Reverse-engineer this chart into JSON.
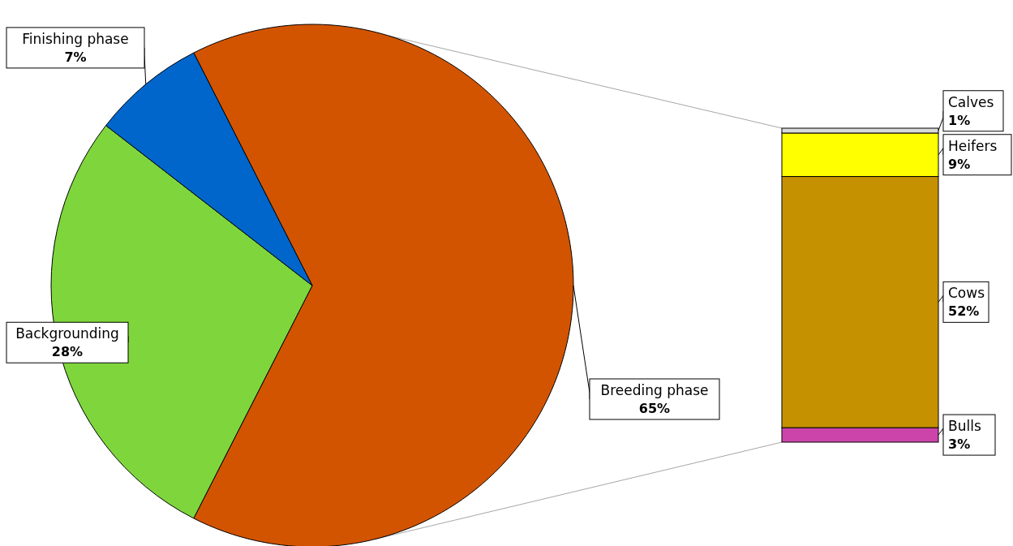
{
  "chart_data": [
    {
      "type": "pie",
      "categories": [
        "Breeding phase",
        "Backgrounding",
        "Finishing phase"
      ],
      "values": [
        65,
        28,
        7
      ],
      "colors": [
        "#d35400",
        "#7ed63c",
        "#0066cc"
      ],
      "value_labels": [
        "65%",
        "28%",
        "7%"
      ]
    },
    {
      "type": "bar",
      "stacked": true,
      "categories": [
        null
      ],
      "series": [
        {
          "name": "Bulls",
          "color": "#cc44aa",
          "values": [
            3
          ],
          "value_labels": [
            "3%"
          ]
        },
        {
          "name": "Cows",
          "color": "#c59100",
          "values": [
            52
          ],
          "value_labels": [
            "52%"
          ]
        },
        {
          "name": "Heifers",
          "color": "#ffff00",
          "values": [
            9
          ],
          "value_labels": [
            "9%"
          ]
        },
        {
          "name": "Calves",
          "color": "#d9d9d9",
          "values": [
            1
          ],
          "value_labels": [
            "1%"
          ]
        }
      ]
    }
  ]
}
